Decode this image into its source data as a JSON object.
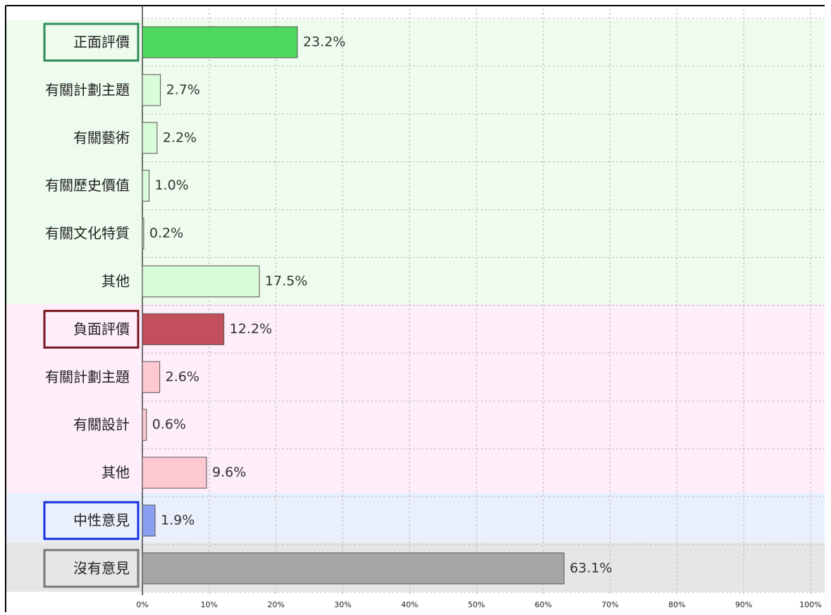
{
  "chart_data": {
    "type": "bar",
    "orientation": "horizontal",
    "categories": [
      "正面評價",
      "有關計劃主題",
      "有關藝術",
      "有關歷史價值",
      "有關文化特質",
      "其他",
      "負面評價",
      "有關計劃主題",
      "有關設計",
      "其他",
      "中性意見",
      "沒有意見"
    ],
    "values": [
      23.2,
      2.7,
      2.2,
      1.0,
      0.2,
      17.5,
      12.2,
      2.6,
      0.6,
      9.6,
      1.9,
      63.1
    ],
    "value_labels": [
      "23.2%",
      "2.7%",
      "2.2%",
      "1.0%",
      "0.2%",
      "17.5%",
      "12.2%",
      "2.6%",
      "0.6%",
      "9.6%",
      "1.9%",
      "63.1%"
    ],
    "colors": [
      "#4fd860",
      "#d9fcd9",
      "#d9fcd9",
      "#d9fcd9",
      "#d9fcd9",
      "#d9fcd9",
      "#c44f5c",
      "#ffc9d2",
      "#ffc9d2",
      "#ffc9d2",
      "#8a9ff0",
      "#a6a6a6"
    ],
    "label_box_colors": [
      "#2e8b57",
      null,
      null,
      null,
      null,
      null,
      "#7a1420",
      null,
      null,
      null,
      "#1530e0",
      "#777777"
    ],
    "xlim": [
      0,
      100
    ],
    "xticks": [
      {
        "value": 0,
        "label": "0%"
      },
      {
        "value": 10,
        "label": "10%"
      },
      {
        "value": 20,
        "label": "20%"
      },
      {
        "value": 30,
        "label": "30%"
      },
      {
        "value": 40,
        "label": "40%"
      },
      {
        "value": 50,
        "label": "50%"
      },
      {
        "value": 60,
        "label": "60%"
      },
      {
        "value": 70,
        "label": "70%"
      },
      {
        "value": 80,
        "label": "80%"
      },
      {
        "value": 90,
        "label": "90%"
      },
      {
        "value": 100,
        "label": "100%"
      }
    ],
    "grid": true
  }
}
